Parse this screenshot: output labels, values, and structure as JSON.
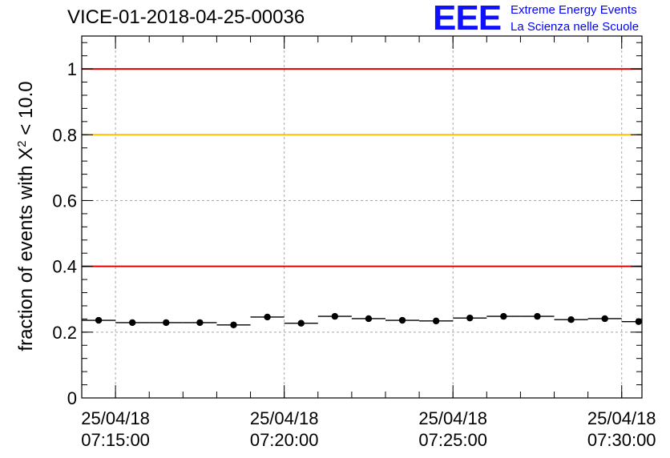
{
  "chart_data": {
    "type": "scatter",
    "title": "VICE-01-2018-04-25-00036",
    "ylabel_text": "fraction of events with X",
    "ylabel_sup": "2",
    "ylabel_tail": " < 10.0",
    "xlabel": "",
    "x_ticks": [
      {
        "date": "25/04/18",
        "time": "07:15:00",
        "t": 15
      },
      {
        "date": "25/04/18",
        "time": "07:20:00",
        "t": 20
      },
      {
        "date": "25/04/18",
        "time": "07:25:00",
        "t": 25
      },
      {
        "date": "25/04/18",
        "time": "07:30:00",
        "t": 30
      }
    ],
    "y_ticks": [
      "0",
      "0.2",
      "0.4",
      "0.6",
      "0.8",
      "1"
    ],
    "ylim": [
      0,
      1.1
    ],
    "xlim_minutes": [
      14,
      30.6
    ],
    "grid": true,
    "reference_lines": [
      {
        "y": 1.0,
        "color": "#e00000"
      },
      {
        "y": 0.8,
        "color": "#ffc000"
      },
      {
        "y": 0.4,
        "color": "#e00000"
      }
    ],
    "points": [
      {
        "x": 14.5,
        "y": 0.236
      },
      {
        "x": 15.5,
        "y": 0.229
      },
      {
        "x": 16.5,
        "y": 0.229
      },
      {
        "x": 17.5,
        "y": 0.229
      },
      {
        "x": 18.5,
        "y": 0.222
      },
      {
        "x": 19.5,
        "y": 0.246
      },
      {
        "x": 20.5,
        "y": 0.227
      },
      {
        "x": 21.5,
        "y": 0.248
      },
      {
        "x": 22.5,
        "y": 0.241
      },
      {
        "x": 23.5,
        "y": 0.236
      },
      {
        "x": 24.5,
        "y": 0.234
      },
      {
        "x": 25.5,
        "y": 0.243
      },
      {
        "x": 26.5,
        "y": 0.248
      },
      {
        "x": 27.5,
        "y": 0.248
      },
      {
        "x": 28.5,
        "y": 0.238
      },
      {
        "x": 29.5,
        "y": 0.241
      },
      {
        "x": 30.5,
        "y": 0.232
      }
    ],
    "bin_width_minutes": 1
  },
  "logo": {
    "mark": "EEE",
    "line1": "Extreme Energy Events",
    "line2": "La Scienza nelle Scuole",
    "color": "#0000ff"
  }
}
